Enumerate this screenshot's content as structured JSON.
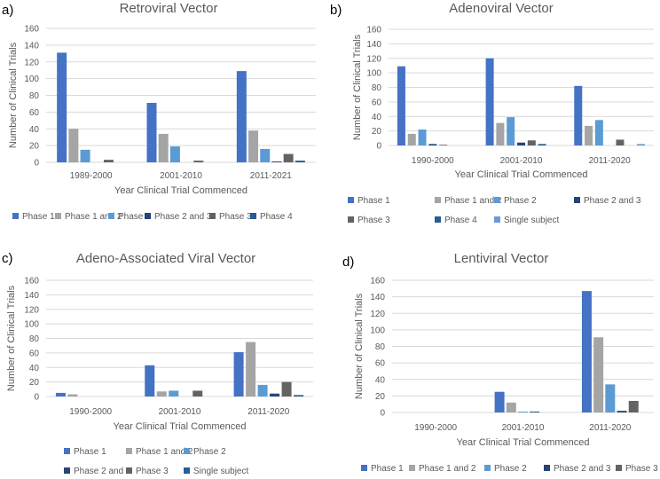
{
  "chart_data": [
    {
      "panel": "a)",
      "type": "bar",
      "title": "Retroviral Vector",
      "xlabel": "Year Clinical Trial Commenced",
      "ylabel": "Number of Clinical Trials",
      "ylim": [
        0,
        160
      ],
      "yticks": [
        0,
        20,
        40,
        60,
        80,
        100,
        120,
        140,
        160
      ],
      "grid": true,
      "legend_position": "bottom",
      "categories": [
        "1989-2000",
        "2001-2010",
        "2011-2021"
      ],
      "series": [
        {
          "name": "Phase 1",
          "color": "#4472C4",
          "values": [
            131,
            71,
            109
          ]
        },
        {
          "name": "Phase 1 and 2",
          "color": "#A5A5A5",
          "values": [
            40,
            34,
            38
          ]
        },
        {
          "name": "Phase 2",
          "color": "#5B9BD5",
          "values": [
            15,
            19,
            16
          ]
        },
        {
          "name": "Phase 2 and 3",
          "color": "#264478",
          "values": [
            0,
            0,
            1
          ]
        },
        {
          "name": "Phase 3",
          "color": "#636363",
          "values": [
            3,
            2,
            10
          ]
        },
        {
          "name": "Phase 4",
          "color": "#255E91",
          "values": [
            0,
            0,
            2
          ]
        }
      ]
    },
    {
      "panel": "b)",
      "type": "bar",
      "title": "Adenoviral Vector",
      "xlabel": "Year Clinical Trial Commenced",
      "ylabel": "Number of Clinical Trials",
      "ylim": [
        0,
        160
      ],
      "yticks": [
        0,
        20,
        40,
        60,
        80,
        100,
        120,
        140,
        160
      ],
      "grid": true,
      "legend_position": "bottom",
      "categories": [
        "1990-2000",
        "2001-2010",
        "2011-2020"
      ],
      "series": [
        {
          "name": "Phase 1",
          "color": "#4472C4",
          "values": [
            109,
            120,
            82
          ]
        },
        {
          "name": "Phase 1 and 2",
          "color": "#A5A5A5",
          "values": [
            16,
            31,
            27
          ]
        },
        {
          "name": "Phase 2",
          "color": "#5B9BD5",
          "values": [
            22,
            39,
            35
          ]
        },
        {
          "name": "Phase 2 and 3",
          "color": "#264478",
          "values": [
            2,
            4,
            0
          ]
        },
        {
          "name": "Phase 3",
          "color": "#636363",
          "values": [
            1,
            7,
            8
          ]
        },
        {
          "name": "Phase 4",
          "color": "#255E91",
          "values": [
            0,
            2,
            0
          ]
        },
        {
          "name": "Single subject",
          "color": "#6A9BD8",
          "values": [
            0,
            0,
            2
          ]
        }
      ]
    },
    {
      "panel": "c)",
      "type": "bar",
      "title": "Adeno-Associated Viral Vector",
      "xlabel": "Year Clinical Trial Commenced",
      "ylabel": "Number of Clinical Trials",
      "ylim": [
        0,
        160
      ],
      "yticks": [
        0,
        20,
        40,
        60,
        80,
        100,
        120,
        140,
        160
      ],
      "grid": true,
      "legend_position": "bottom",
      "categories": [
        "1990-2000",
        "2001-2010",
        "2011-2020"
      ],
      "series": [
        {
          "name": "Phase 1",
          "color": "#4472C4",
          "values": [
            5,
            43,
            61
          ]
        },
        {
          "name": "Phase 1 and 2",
          "color": "#A5A5A5",
          "values": [
            3,
            7,
            75
          ]
        },
        {
          "name": "Phase 2",
          "color": "#5B9BD5",
          "values": [
            0,
            8,
            16
          ]
        },
        {
          "name": "Phase 2 and 3",
          "color": "#264478",
          "values": [
            0,
            0,
            4
          ]
        },
        {
          "name": "Phase 3",
          "color": "#636363",
          "values": [
            0,
            8,
            20
          ]
        },
        {
          "name": "Single subject",
          "color": "#255E91",
          "values": [
            0,
            0,
            2
          ]
        }
      ]
    },
    {
      "panel": "d)",
      "type": "bar",
      "title": "Lentiviral Vector",
      "xlabel": "Year Clinical Trial Commenced",
      "ylabel": "Number of Clinical Trials",
      "ylim": [
        0,
        160
      ],
      "yticks": [
        0,
        20,
        40,
        60,
        80,
        100,
        120,
        140,
        160
      ],
      "grid": true,
      "legend_position": "bottom",
      "categories": [
        "1990-2000",
        "2001-2010",
        "2011-2020"
      ],
      "series": [
        {
          "name": "Phase 1",
          "color": "#4472C4",
          "values": [
            0,
            25,
            147
          ]
        },
        {
          "name": "Phase 1 and 2",
          "color": "#A5A5A5",
          "values": [
            0,
            12,
            91
          ]
        },
        {
          "name": "Phase 2",
          "color": "#5B9BD5",
          "values": [
            0,
            1,
            34
          ]
        },
        {
          "name": "Phase 2 and 3",
          "color": "#264478",
          "values": [
            0,
            1,
            2
          ]
        },
        {
          "name": "Phase 3",
          "color": "#636363",
          "values": [
            0,
            0,
            14
          ]
        }
      ]
    }
  ]
}
